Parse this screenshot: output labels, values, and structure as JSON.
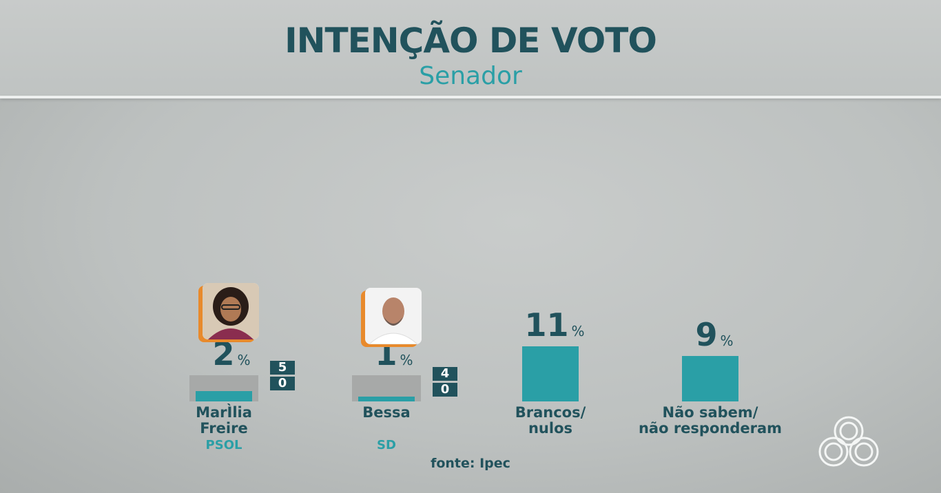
{
  "header": {
    "title": "INTENÇÃO DE VOTO",
    "subtitle": "Senador"
  },
  "chart_data": {
    "type": "bar",
    "title": "INTENÇÃO DE VOTO",
    "subtitle": "Senador",
    "unit": "%",
    "ylim": [
      0,
      11
    ],
    "categories": [
      {
        "label_lines": [
          "MarÌlia",
          "Freire"
        ],
        "party": "PSOL",
        "value": 2,
        "value_label": "2",
        "margin_top": "5",
        "margin_bottom": "0",
        "has_photo": true
      },
      {
        "label_lines": [
          "Bessa"
        ],
        "party": "SD",
        "value": 1,
        "value_label": "1",
        "margin_top": "4",
        "margin_bottom": "0",
        "has_photo": true
      },
      {
        "label_lines": [
          "Brancos/",
          "nulos"
        ],
        "party": "",
        "value": 11,
        "value_label": "11",
        "has_photo": false
      },
      {
        "label_lines": [
          "Não sabem/",
          "não responderam"
        ],
        "party": "",
        "value": 9,
        "value_label": "9",
        "has_photo": false
      }
    ],
    "colors": {
      "bar": "#2a9fa6",
      "track": "#a7a9a8",
      "text": "#21525c",
      "accent": "#e88a2c"
    }
  },
  "footer": {
    "source": "fonte: Ipec"
  },
  "icons": {
    "logo": "broadcaster-logo-icon"
  }
}
